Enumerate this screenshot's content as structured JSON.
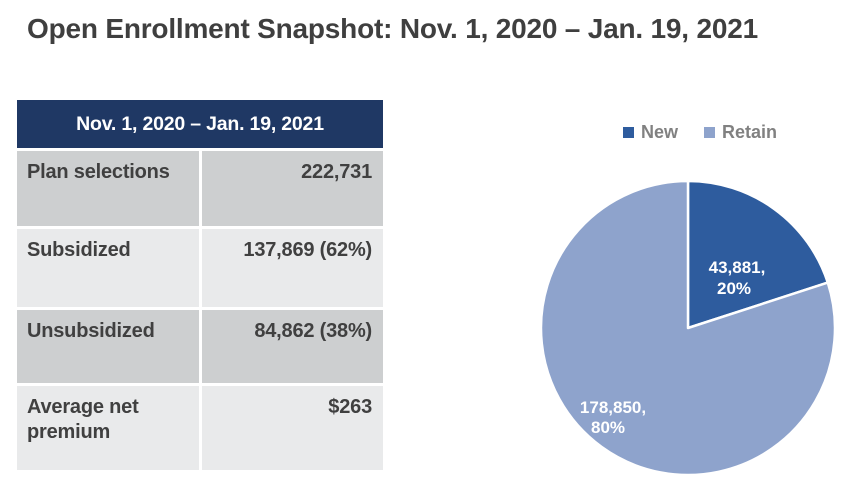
{
  "title": "Open Enrollment Snapshot: Nov. 1, 2020 – Jan. 19, 2021",
  "table": {
    "header_label": "Nov. 1, 2020 – Jan. 19, 2021",
    "rows": [
      {
        "label": "Plan selections",
        "value": "222,731"
      },
      {
        "label": "Subsidized",
        "value": "137,869 (62%)"
      },
      {
        "label": "Unsubsidized",
        "value": "84,862 (38%)"
      },
      {
        "label": "Average net premium",
        "value": "$263"
      }
    ]
  },
  "chart_data": {
    "type": "pie",
    "title": "",
    "legend_position": "top",
    "rotation_start_deg": 0,
    "slices": [
      {
        "name": "New",
        "value": 43881,
        "pct": 20,
        "label_line1": "43,881,",
        "label_line2": "20%",
        "color": "#2E5C9E"
      },
      {
        "name": "Retain",
        "value": 178850,
        "pct": 80,
        "label_line1": "178,850,",
        "label_line2": "80%",
        "color": "#8EA3CC"
      }
    ]
  },
  "colors": {
    "table_header_bg": "#1F3864",
    "table_header_text": "#FFFFFF",
    "table_row_dark": "#CDCFD0",
    "table_row_light": "#E9EAEB",
    "table_text": "#404040",
    "title_text": "#3F3F3F",
    "legend_text": "#818181",
    "pie_new": "#2E5C9E",
    "pie_retain": "#8EA3CC"
  }
}
